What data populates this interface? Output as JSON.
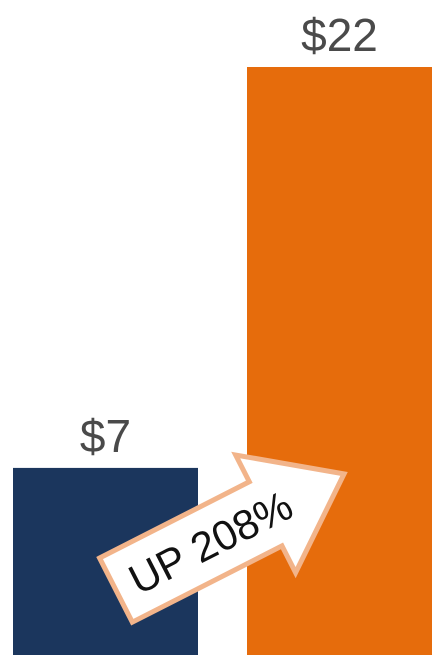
{
  "chart_data": {
    "type": "bar",
    "categories": [
      "",
      ""
    ],
    "values": [
      7,
      22
    ],
    "data_labels": [
      "$7",
      "$22"
    ],
    "colors": [
      "#1b365d",
      "#e66c0c"
    ],
    "ylim": [
      0,
      22
    ],
    "grid": false,
    "annotation": {
      "text": "UP 208%",
      "shape": "arrow",
      "fill": "#ffffff",
      "stroke": "#f2b48a"
    }
  }
}
